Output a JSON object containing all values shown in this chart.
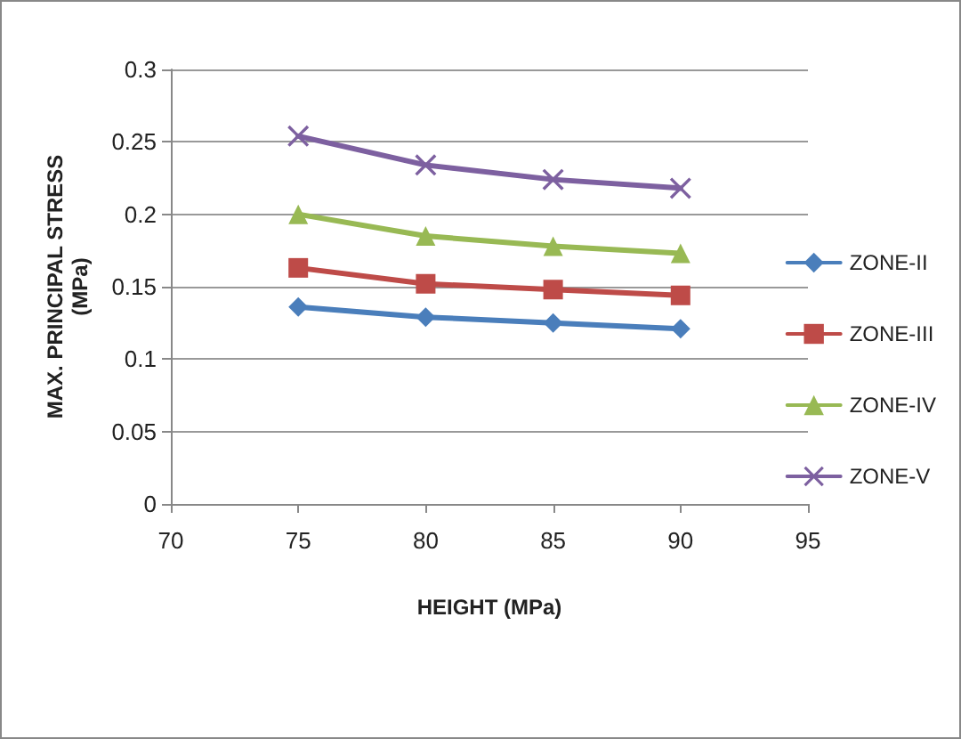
{
  "chart_data": {
    "type": "line",
    "xlabel": "HEIGHT (MPa)",
    "ylabel": "MAX. PRINCIPAL STRESS\n(MPa)",
    "x": [
      75,
      80,
      85,
      90
    ],
    "series": [
      {
        "name": "ZONE-II",
        "color": "#4a7ebb",
        "marker": "diamond",
        "values": [
          0.136,
          0.129,
          0.125,
          0.121
        ]
      },
      {
        "name": "ZONE-III",
        "color": "#be4b48",
        "marker": "square",
        "values": [
          0.163,
          0.152,
          0.148,
          0.144
        ]
      },
      {
        "name": "ZONE-IV",
        "color": "#98b954",
        "marker": "triangle",
        "values": [
          0.2,
          0.185,
          0.178,
          0.173
        ]
      },
      {
        "name": "ZONE-V",
        "color": "#7d60a0",
        "marker": "cross",
        "values": [
          0.254,
          0.234,
          0.224,
          0.218
        ]
      }
    ],
    "xlim": [
      70,
      95
    ],
    "xticks": [
      70,
      75,
      80,
      85,
      90,
      95
    ],
    "ylim": [
      0,
      0.3
    ],
    "yticks": [
      0,
      0.05,
      0.1,
      0.15,
      0.2,
      0.25,
      0.3
    ],
    "grid": "y",
    "legend": "right"
  }
}
